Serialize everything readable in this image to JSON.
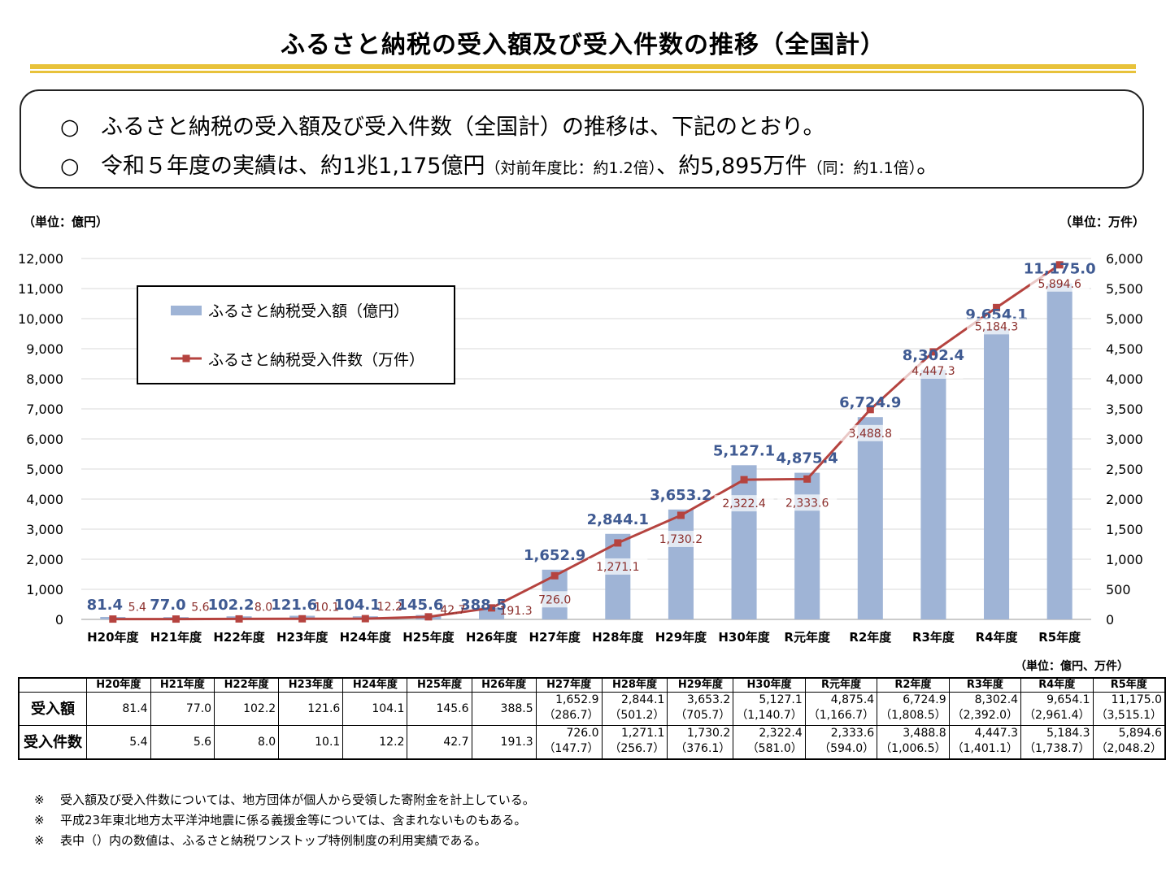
{
  "title": "ふるさと納税の受入額及び受入件数の推移（全国計）",
  "summary": {
    "line1_mark": "○",
    "line1": "ふるさと納税の受入額及び受入件数（全国計）の推移は、下記のとおり。",
    "line2_mark": "○",
    "line2_a": "令和５年度の実績は、約1兆1,175億円",
    "line2_b": "（対前年度比：約1.2倍）",
    "line2_c": "、約5,895万件",
    "line2_d": "（同：約1.1倍）",
    "line2_e": "。"
  },
  "colors": {
    "bar": "#9fb4d6",
    "line": "#b5433f",
    "bar_label": "#3f5a92",
    "line_label": "#8b2e2b",
    "accent_rule": "#e8c23a"
  },
  "chart_data": {
    "type": "bar+line",
    "left_unit": "（単位：億円）",
    "right_unit": "（単位：万件）",
    "categories": [
      "H20年度",
      "H21年度",
      "H22年度",
      "H23年度",
      "H24年度",
      "H25年度",
      "H26年度",
      "H27年度",
      "H28年度",
      "H29年度",
      "H30年度",
      "R元年度",
      "R2年度",
      "R3年度",
      "R4年度",
      "R5年度"
    ],
    "series": [
      {
        "name": "ふるさと納税受入額（億円）",
        "kind": "bar",
        "axis": "left",
        "values": [
          81.4,
          77.0,
          102.2,
          121.6,
          104.1,
          145.6,
          388.5,
          1652.9,
          2844.1,
          3653.2,
          5127.1,
          4875.4,
          6724.9,
          8302.4,
          9654.1,
          11175.0
        ],
        "labels": [
          "81.4",
          "77.0",
          "102.2",
          "121.6",
          "104.1",
          "145.6",
          "388.5",
          "1,652.9",
          "2,844.1",
          "3,653.2",
          "5,127.1",
          "4,875.4",
          "6,724.9",
          "8,302.4",
          "9,654.1",
          "11,175.0"
        ]
      },
      {
        "name": "ふるさと納税受入件数（万件）",
        "kind": "line",
        "axis": "right",
        "values": [
          5.4,
          5.6,
          8.0,
          10.1,
          12.2,
          42.7,
          191.3,
          726.0,
          1271.1,
          1730.2,
          2322.4,
          2333.6,
          3488.8,
          4447.3,
          5184.3,
          5894.6
        ],
        "labels": [
          "5.4",
          "5.6",
          "8.0",
          "10.1",
          "12.2",
          "42.7",
          "191.3",
          "726.0",
          "1,271.1",
          "1,730.2",
          "2,322.4",
          "2,333.6",
          "3,488.8",
          "4,447.3",
          "5,184.3",
          "5,894.6"
        ]
      }
    ],
    "ylim_left": [
      0,
      12000
    ],
    "ylim_right": [
      0,
      6000
    ],
    "left_ticks": [
      "0",
      "1,000",
      "2,000",
      "3,000",
      "4,000",
      "5,000",
      "6,000",
      "7,000",
      "8,000",
      "9,000",
      "10,000",
      "11,000",
      "12,000"
    ],
    "right_ticks": [
      "0",
      "500",
      "1,000",
      "1,500",
      "2,000",
      "2,500",
      "3,000",
      "3,500",
      "4,000",
      "4,500",
      "5,000",
      "5,500",
      "6,000"
    ],
    "grid": true,
    "legend_position": "top-left"
  },
  "table": {
    "unit": "（単位：億円、万件）",
    "headers": [
      "H20年度",
      "H21年度",
      "H22年度",
      "H23年度",
      "H24年度",
      "H25年度",
      "H26年度",
      "H27年度",
      "H28年度",
      "H29年度",
      "H30年度",
      "R元年度",
      "R2年度",
      "R3年度",
      "R4年度",
      "R5年度"
    ],
    "rows": [
      {
        "label": "受入額",
        "main": [
          "81.4",
          "77.0",
          "102.2",
          "121.6",
          "104.1",
          "145.6",
          "388.5",
          "1,652.9",
          "2,844.1",
          "3,653.2",
          "5,127.1",
          "4,875.4",
          "6,724.9",
          "8,302.4",
          "9,654.1",
          "11,175.0"
        ],
        "sub": [
          "",
          "",
          "",
          "",
          "",
          "",
          "",
          "（286.7）",
          "（501.2）",
          "（705.7）",
          "（1,140.7）",
          "（1,166.7）",
          "（1,808.5）",
          "（2,392.0）",
          "（2,961.4）",
          "（3,515.1）"
        ]
      },
      {
        "label": "受入件数",
        "main": [
          "5.4",
          "5.6",
          "8.0",
          "10.1",
          "12.2",
          "42.7",
          "191.3",
          "726.0",
          "1,271.1",
          "1,730.2",
          "2,322.4",
          "2,333.6",
          "3,488.8",
          "4,447.3",
          "5,184.3",
          "5,894.6"
        ],
        "sub": [
          "",
          "",
          "",
          "",
          "",
          "",
          "",
          "（147.7）",
          "（256.7）",
          "（376.1）",
          "（581.0）",
          "（594.0）",
          "（1,006.5）",
          "（1,401.1）",
          "（1,738.7）",
          "（2,048.2）"
        ]
      }
    ]
  },
  "notes": [
    {
      "mark": "※",
      "text": "受入額及び受入件数については、地方団体が個人から受領した寄附金を計上している。"
    },
    {
      "mark": "※",
      "text": "平成23年東北地方太平洋沖地震に係る義援金等については、含まれないものもある。"
    },
    {
      "mark": "※",
      "text": "表中（）内の数値は、ふるさと納税ワンストップ特例制度の利用実績である。"
    }
  ]
}
